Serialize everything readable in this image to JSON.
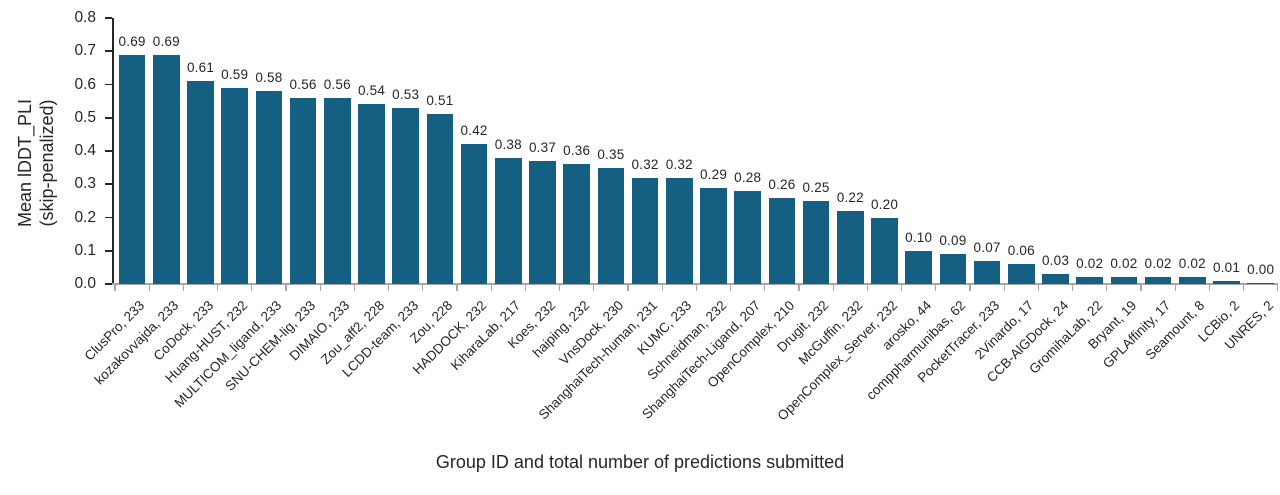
{
  "axes": {
    "x_title": "Group ID and total number of predictions submitted",
    "y_title_line1": "Mean lDDT_PLI",
    "y_title_line2": "(skip-penalized)",
    "y_ticks": [
      "0.0",
      "0.1",
      "0.2",
      "0.3",
      "0.4",
      "0.5",
      "0.6",
      "0.7",
      "0.8"
    ]
  },
  "colors": {
    "bar": "#156082",
    "value_axis_line": "#262626",
    "category_axis_line": "#a6a6a6",
    "text": "#262626"
  },
  "chart_data": {
    "type": "bar",
    "title": "",
    "xlabel": "Group ID and total number of predictions submitted",
    "ylabel": "Mean lDDT_PLI (skip-penalized)",
    "ylim": [
      0,
      0.8
    ],
    "ytick_step": 0.1,
    "grid": false,
    "legend_position": "none",
    "bar_color": "#156082",
    "categories": [
      "ClusPro, 233",
      "kozakovvajda, 233",
      "CoDock, 233",
      "Huang-HUST, 232",
      "MULTICOM_ligand, 233",
      "SNU-CHEM-lig, 233",
      "DIMAIO, 233",
      "Zou_aff2, 228",
      "LCDD-team, 233",
      "Zou, 228",
      "HADDOCK, 232",
      "KiharaLab, 217",
      "Koes, 232",
      "haiping, 232",
      "VnsDock, 230",
      "ShanghaiTech-human, 231",
      "KUMC, 233",
      "Schneidman, 232",
      "ShanghaiTech-Ligand, 207",
      "OpenComplex, 210",
      "Drugit, 232",
      "McGuffin, 232",
      "OpenComplex_Server, 232",
      "arosko, 44",
      "comppharmunibas, 62",
      "PocketTracer, 233",
      "2Vinardo, 17",
      "CCB-AlGDock, 24",
      "GromihaLab, 22",
      "Bryant, 19",
      "GPLAffinity, 17",
      "Seamount, 8",
      "LCBio, 2",
      "UNRES, 2"
    ],
    "values": [
      0.69,
      0.69,
      0.61,
      0.59,
      0.58,
      0.56,
      0.56,
      0.54,
      0.53,
      0.51,
      0.42,
      0.38,
      0.37,
      0.36,
      0.35,
      0.32,
      0.32,
      0.29,
      0.28,
      0.26,
      0.25,
      0.22,
      0.2,
      0.1,
      0.09,
      0.07,
      0.06,
      0.03,
      0.02,
      0.02,
      0.02,
      0.02,
      0.01,
      0.0
    ],
    "value_labels": [
      "0.69",
      "0.69",
      "0.61",
      "0.59",
      "0.58",
      "0.56",
      "0.56",
      "0.54",
      "0.53",
      "0.51",
      "0.42",
      "0.38",
      "0.37",
      "0.36",
      "0.35",
      "0.32",
      "0.32",
      "0.29",
      "0.28",
      "0.26",
      "0.25",
      "0.22",
      "0.20",
      "0.10",
      "0.09",
      "0.07",
      "0.06",
      "0.03",
      "0.02",
      "0.02",
      "0.02",
      "0.02",
      "0.01",
      "0.00"
    ]
  }
}
